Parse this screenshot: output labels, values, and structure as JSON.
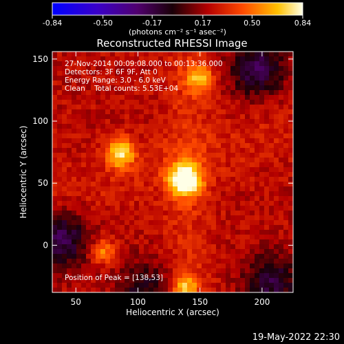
{
  "colorbar": {
    "tick_labels": [
      "-0.84",
      "-0.50",
      "-0.17",
      "0.17",
      "0.50",
      "0.84"
    ],
    "tick_values": [
      -0.84,
      -0.5,
      -0.17,
      0.17,
      0.5,
      0.84
    ],
    "range": [
      -0.84,
      0.84
    ],
    "unit_label": "(photons cm⁻² s⁻¹ asec⁻²)"
  },
  "chart_data": {
    "type": "heatmap",
    "title": "Reconstructed RHESSI Image",
    "xlabel": "Heliocentric X (arcsec)",
    "ylabel": "Heliocentric Y (arcsec)",
    "xlim": [
      31,
      225
    ],
    "ylim": [
      -38,
      156
    ],
    "x_ticks": [
      50,
      100,
      150,
      200
    ],
    "y_ticks": [
      0,
      50,
      100,
      150
    ],
    "info_lines": [
      "27-Nov-2014 00:09:08.000 to 00:13:36.000",
      "Detectors: 3F 6F 9F, Att 0",
      "Energy Range: 3.0 - 6.0 keV",
      "Clean    Total counts: 5.53E+04"
    ],
    "peak_label": "Position of Peak = [138,53]",
    "peak": {
      "x": 138,
      "y": 53
    },
    "sources": [
      {
        "x": 138,
        "y": 53,
        "amp": 0.84,
        "sigma": 9
      },
      {
        "x": 86,
        "y": 74,
        "amp": 0.62,
        "sigma": 8
      },
      {
        "x": 150,
        "y": 134,
        "amp": 0.45,
        "sigma": 8
      },
      {
        "x": 72,
        "y": -5,
        "amp": 0.4,
        "sigma": 7
      },
      {
        "x": 138,
        "y": -34,
        "amp": 0.48,
        "sigma": 7
      }
    ],
    "background_level": 0.22,
    "dark_regions": [
      {
        "x": 196,
        "y": 142,
        "depth": 0.4
      },
      {
        "x": 38,
        "y": 5,
        "depth": 0.42
      },
      {
        "x": 208,
        "y": -30,
        "depth": 0.35
      },
      {
        "x": 105,
        "y": -34,
        "depth": 0.28
      }
    ],
    "colormap": "red-temperature"
  },
  "timestamp": "19-May-2022 22:30"
}
